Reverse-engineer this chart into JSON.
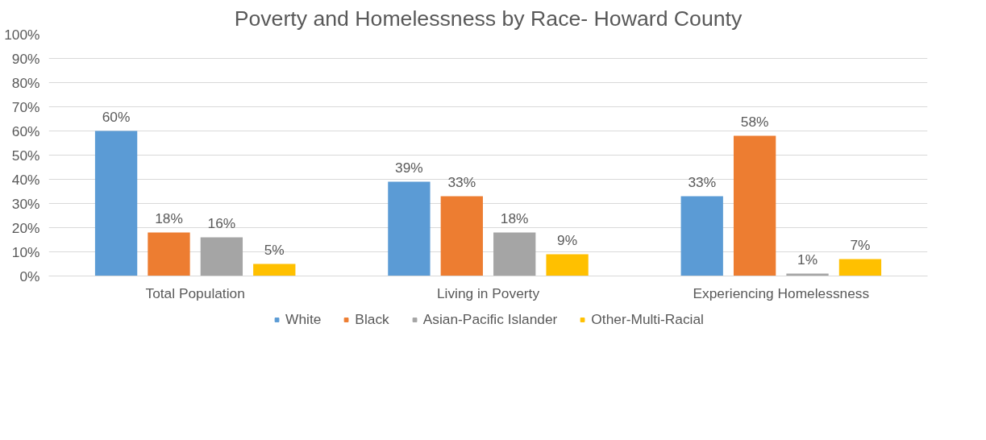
{
  "chart_data": {
    "type": "bar",
    "title": "Poverty and Homelessness by Race- Howard County",
    "categories": [
      "Total Population",
      "Living in Poverty",
      "Experiencing Homelessness"
    ],
    "series": [
      {
        "name": "White",
        "color": "#5b9bd5",
        "values": [
          60,
          39,
          33
        ],
        "value_labels": [
          "60%",
          "39%",
          "33%"
        ]
      },
      {
        "name": "Black",
        "color": "#ed7d31",
        "values": [
          18,
          33,
          58
        ],
        "value_labels": [
          "18%",
          "33%",
          "58%"
        ]
      },
      {
        "name": "Asian-Pacific Islander",
        "color": "#a5a5a5",
        "values": [
          16,
          18,
          1
        ],
        "value_labels": [
          "16%",
          "18%",
          "1%"
        ]
      },
      {
        "name": "Other-Multi-Racial",
        "color": "#ffc000",
        "values": [
          5,
          9,
          7
        ],
        "value_labels": [
          "5%",
          "9%",
          "7%"
        ]
      }
    ],
    "ylim": [
      0,
      100
    ],
    "yticks": [
      {
        "value": 0,
        "label": "0%"
      },
      {
        "value": 10,
        "label": "10%"
      },
      {
        "value": 20,
        "label": "20%"
      },
      {
        "value": 30,
        "label": "30%"
      },
      {
        "value": 40,
        "label": "40%"
      },
      {
        "value": 50,
        "label": "50%"
      },
      {
        "value": 60,
        "label": "60%"
      },
      {
        "value": 70,
        "label": "70%"
      },
      {
        "value": 80,
        "label": "80%"
      },
      {
        "value": 90,
        "label": "90%"
      },
      {
        "value": 100,
        "label": "100%"
      }
    ],
    "grid": "y",
    "legend": "bottom"
  }
}
